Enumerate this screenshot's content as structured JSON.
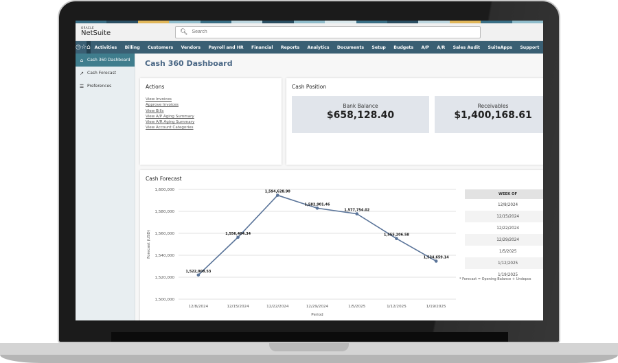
{
  "stripe_colors": [
    "#3a6f86",
    "#2a4f63",
    "#e1b75a",
    "#8fbccb",
    "#3a6f86",
    "#bcd6df",
    "#2a4f63",
    "#8fbccb",
    "#d9e8ec",
    "#3a6f86",
    "#2a4f63",
    "#bcd6df",
    "#e1b75a",
    "#3a6f86",
    "#8fbccb"
  ],
  "header": {
    "logo_top": "ORACLE",
    "logo_main": "NetSuite",
    "search_placeholder": "Search"
  },
  "nav": {
    "icons": [
      "recent-icon",
      "favorites-icon",
      "home-icon"
    ],
    "items": [
      "Activities",
      "Billing",
      "Customers",
      "Vendors",
      "Payroll and HR",
      "Financial",
      "Reports",
      "Analytics",
      "Documents",
      "Setup",
      "Budgets",
      "A/P",
      "A/R",
      "Sales Audit",
      "SuiteApps",
      "Support"
    ]
  },
  "sidebar": {
    "items": [
      {
        "label": "Cash 360 Dashboard",
        "icon": "⌂",
        "active": true
      },
      {
        "label": "Cash Forecast",
        "icon": "↗",
        "active": false
      },
      {
        "label": "Preferences",
        "icon": "☰",
        "active": false
      }
    ]
  },
  "page": {
    "title": "Cash 360 Dashboard"
  },
  "actions": {
    "title": "Actions",
    "links": [
      "View Invoices",
      "Approve Invoices",
      "View Bills",
      "View A/P Aging Summary",
      "View A/R Aging Summary",
      "View Account Categories"
    ]
  },
  "cash_position": {
    "title": "Cash Position",
    "tiles": [
      {
        "label": "Bank Balance",
        "value": "$658,128.40"
      },
      {
        "label": "Receivables",
        "value": "$1,400,168.61"
      }
    ]
  },
  "forecast": {
    "title": "Cash Forecast",
    "table": {
      "header": "WEEK OF",
      "rows": [
        "12/8/2024",
        "12/15/2024",
        "12/22/2024",
        "12/29/2024",
        "1/5/2025",
        "1/12/2025",
        "1/19/2025"
      ]
    },
    "footnote": "* Forecast = Opening Balance + Undepos"
  },
  "chart_data": {
    "type": "line",
    "title": "Cash Forecast",
    "xlabel": "Period",
    "ylabel": "Forecast (USD)",
    "categories": [
      "12/8/2024",
      "12/15/2024",
      "12/22/2024",
      "12/29/2024",
      "1/5/2025",
      "1/12/2025",
      "1/19/2025"
    ],
    "values": [
      1522008.53,
      1556404.34,
      1594628.9,
      1582901.46,
      1577754.02,
      1555206.58,
      1534659.14
    ],
    "labels": [
      "1,522,008.53",
      "1,556,404.34",
      "1,594,628.90",
      "1,582,901.46",
      "1,577,754.02",
      "1,555,206.58",
      "1,534,659.14"
    ],
    "ylim": [
      1500000,
      1600000
    ],
    "yticks": [
      "1,600,000",
      "1,580,000",
      "1,560,000",
      "1,540,000",
      "1,520,000",
      "1,500,000"
    ],
    "grid": true,
    "line_color": "#5a7499"
  }
}
